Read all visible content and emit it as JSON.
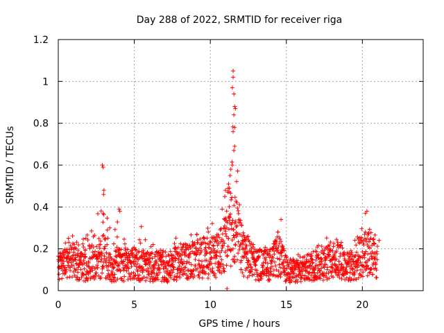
{
  "chart_data": {
    "type": "scatter",
    "title": "Day 288 of 2022, SRMTID for receiver riga",
    "xlabel": "GPS time / hours",
    "ylabel": "SRMTID / TECUs",
    "xlim": [
      0,
      24
    ],
    "ylim": [
      0,
      1.2
    ],
    "x_ticks": [
      0,
      5,
      10,
      15,
      20
    ],
    "x_tick_labels": [
      "0",
      "5",
      "10",
      "15",
      "20"
    ],
    "y_ticks": [
      0,
      0.2,
      0.4,
      0.6,
      0.8,
      1.0,
      1.2
    ],
    "y_tick_labels": [
      "0",
      "0.2",
      "0.4",
      "0.6",
      "0.8",
      "1",
      "1.2"
    ],
    "grid": true,
    "marker": "plus",
    "color": "#ff0000",
    "series": [
      {
        "name": "SRMTID",
        "profile": {
          "x": [
            0.0,
            0.5,
            1.0,
            1.5,
            2.0,
            2.5,
            3.0,
            3.5,
            4.0,
            4.5,
            5.0,
            5.5,
            6.0,
            6.5,
            7.0,
            7.5,
            8.0,
            8.5,
            9.0,
            9.5,
            10.0,
            10.5,
            11.0,
            11.5,
            12.0,
            12.5,
            13.0,
            13.5,
            14.0,
            14.5,
            15.0,
            15.5,
            16.0,
            16.5,
            17.0,
            17.5,
            18.0,
            18.5,
            19.0,
            19.5,
            20.0,
            20.5,
            21.0
          ],
          "typical": [
            0.13,
            0.14,
            0.15,
            0.12,
            0.14,
            0.15,
            0.18,
            0.12,
            0.14,
            0.12,
            0.14,
            0.13,
            0.12,
            0.13,
            0.11,
            0.13,
            0.15,
            0.15,
            0.16,
            0.17,
            0.17,
            0.18,
            0.24,
            0.35,
            0.22,
            0.16,
            0.14,
            0.13,
            0.14,
            0.18,
            0.11,
            0.1,
            0.1,
            0.12,
            0.14,
            0.14,
            0.16,
            0.17,
            0.12,
            0.13,
            0.18,
            0.2,
            0.14
          ],
          "peak": [
            0.19,
            0.26,
            0.32,
            0.24,
            0.28,
            0.31,
            0.6,
            0.22,
            0.39,
            0.22,
            0.27,
            0.33,
            0.22,
            0.23,
            0.2,
            0.33,
            0.26,
            0.27,
            0.29,
            0.3,
            0.35,
            0.37,
            0.53,
            1.05,
            0.32,
            0.26,
            0.24,
            0.22,
            0.26,
            0.34,
            0.21,
            0.18,
            0.17,
            0.21,
            0.23,
            0.24,
            0.29,
            0.27,
            0.22,
            0.24,
            0.34,
            0.39,
            0.24
          ]
        },
        "points": [
          [
            2.9,
            0.6
          ],
          [
            2.95,
            0.59
          ],
          [
            3.0,
            0.48
          ],
          [
            2.98,
            0.46
          ],
          [
            4.0,
            0.39
          ],
          [
            4.05,
            0.38
          ],
          [
            11.5,
            1.05
          ],
          [
            11.5,
            1.02
          ],
          [
            11.45,
            0.97
          ],
          [
            11.55,
            0.94
          ],
          [
            11.6,
            0.88
          ],
          [
            11.65,
            0.87
          ],
          [
            11.55,
            0.84
          ],
          [
            11.6,
            0.78
          ],
          [
            11.5,
            0.76
          ],
          [
            11.6,
            0.69
          ],
          [
            11.55,
            0.67
          ],
          [
            11.45,
            0.6
          ],
          [
            11.35,
            0.58
          ],
          [
            11.3,
            0.55
          ],
          [
            11.2,
            0.51
          ],
          [
            11.25,
            0.49
          ],
          [
            11.0,
            0.48
          ],
          [
            10.95,
            0.45
          ],
          [
            11.1,
            0.01
          ],
          [
            14.65,
            0.34
          ],
          [
            20.2,
            0.37
          ],
          [
            20.3,
            0.38
          ],
          [
            21.1,
            0.24
          ]
        ]
      }
    ]
  }
}
